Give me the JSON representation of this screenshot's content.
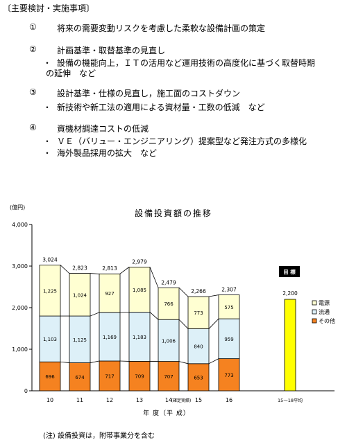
{
  "measures": {
    "heading": "〔主要検討・実施事項〕",
    "items": [
      {
        "num": "①",
        "text": "将来の需要変動リスクを考慮した柔軟な設備計画の策定",
        "subs": []
      },
      {
        "num": "②",
        "text": "計画基準・取替基準の見直し",
        "subs": [
          {
            "text": "設備の機能向上，ＩＴの活用など運用技術の高度化に基づく取替時期",
            "cont": "の延伸　など"
          }
        ]
      },
      {
        "num": "③",
        "text": "設計基準・仕様の見直し，施工面のコストダウン",
        "subs": [
          {
            "text": "新技術や新工法の適用による資材量・工数の低減　など",
            "cont": ""
          }
        ]
      },
      {
        "num": "④",
        "text": "資機材調達コストの低減",
        "subs": [
          {
            "text": "ＶＥ（バリュー・エンジニアリング）提案型など発注方式の多様化",
            "cont": ""
          },
          {
            "text": "海外製品採用の拡大　など",
            "cont": ""
          }
        ]
      }
    ],
    "bullet": "・"
  },
  "chart_data": {
    "type": "bar",
    "title": "設備投資額の推移",
    "unit_label": "(億円)",
    "xlabel": "年 度（平 成）",
    "ylim": [
      0,
      4000
    ],
    "yticks": [
      "0",
      "1,000",
      "2,000",
      "3,000",
      "4,000"
    ],
    "categories": [
      "10",
      "11",
      "12",
      "13",
      "14",
      "15",
      "16"
    ],
    "category_note": {
      "index": 4,
      "text": "(確定実績)"
    },
    "series": [
      {
        "name": "その他",
        "color": "#F58220",
        "values": [
          696,
          674,
          717,
          709,
          707,
          653,
          773
        ],
        "labels": [
          "696",
          "674",
          "717",
          "709",
          "707",
          "653",
          "773"
        ]
      },
      {
        "name": "流通",
        "color": "#DDF0F8",
        "values": [
          1103,
          1125,
          1169,
          1183,
          1006,
          840,
          959
        ],
        "labels": [
          "1,103",
          "1,125",
          "1,169",
          "1,183",
          "1,006",
          "840",
          "959"
        ]
      },
      {
        "name": "電源",
        "color": "#FFFFD2",
        "values": [
          1225,
          1024,
          927,
          1085,
          766,
          773,
          575
        ],
        "labels": [
          "1,225",
          "1,024",
          "927",
          "1,085",
          "766",
          "773",
          "575"
        ]
      }
    ],
    "totals": [
      "3,024",
      "2,823",
      "2,813",
      "2,979",
      "2,479",
      "2,266",
      "2,307"
    ],
    "target": {
      "category": "15～18平均",
      "value": 2200,
      "label": "2,200",
      "color": "#FFFF00",
      "badge": "目 標"
    },
    "legend_order": [
      "電源",
      "流通",
      "その他"
    ],
    "legend_position": "right",
    "note": "(注) 設備投資は，附帯事業分を含む"
  }
}
